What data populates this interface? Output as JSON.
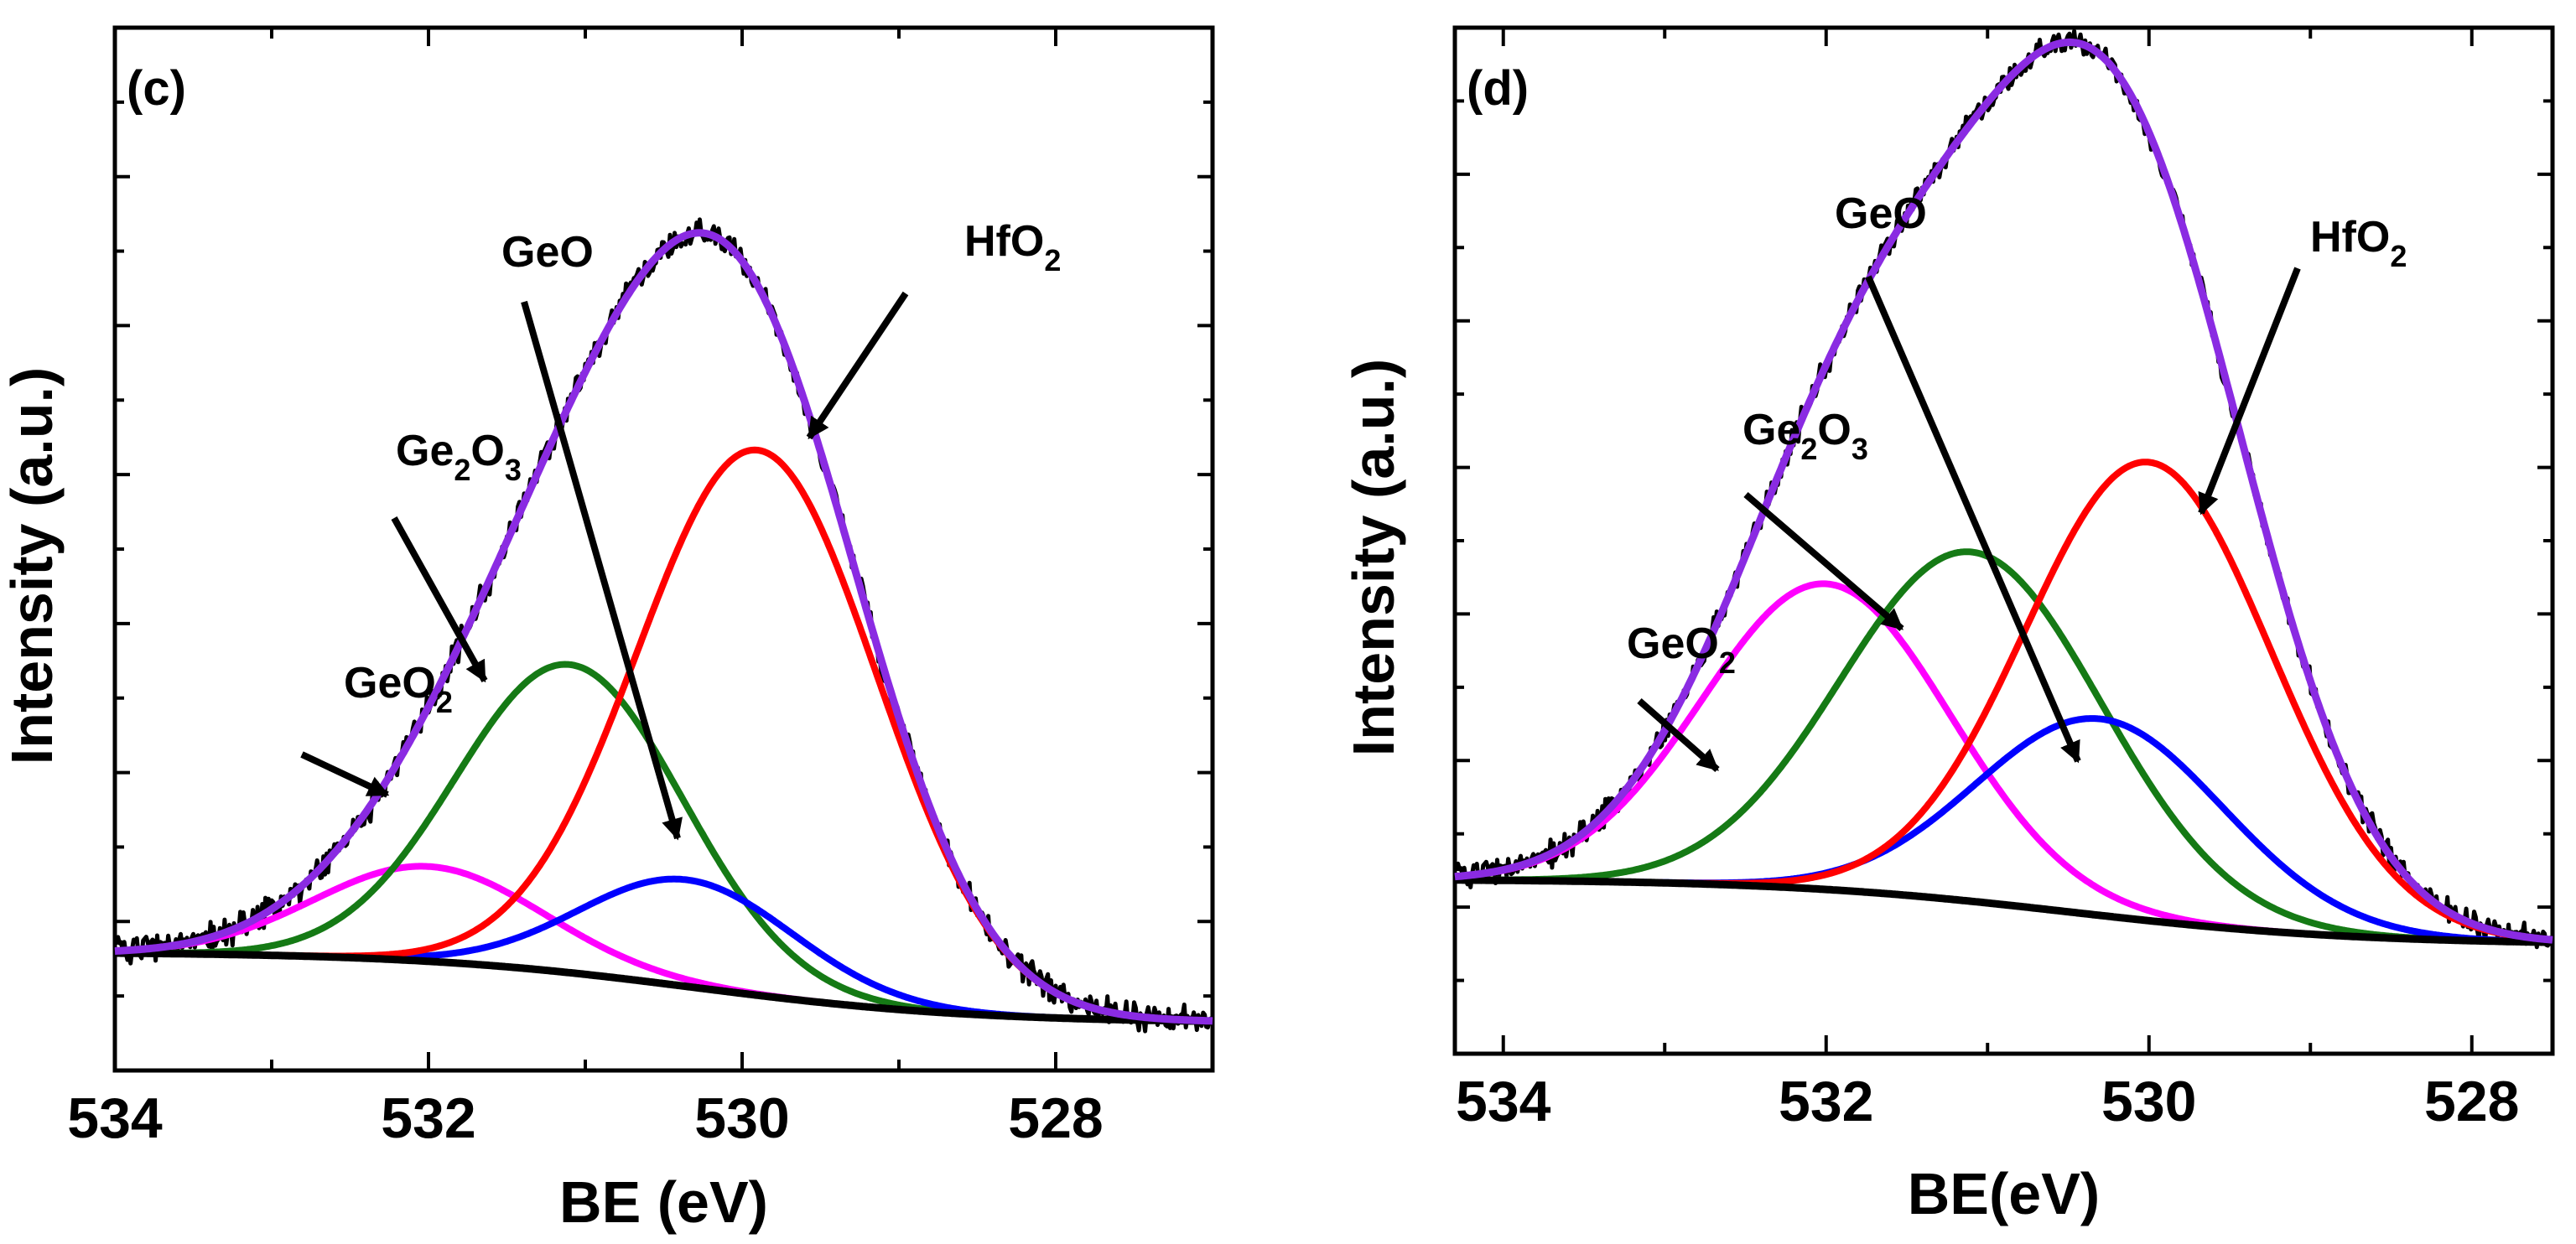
{
  "chart_data": [
    {
      "type": "line",
      "panel_label": "(c)",
      "xlabel": "BE (eV)",
      "ylabel": "Intensity (a.u.)",
      "xlim": [
        534,
        527
      ],
      "ylim": [
        -0.2,
        4.2
      ],
      "y_ticks_labeled": false,
      "x_ticks": [
        534,
        532,
        530,
        528
      ],
      "x_tick_labels": [
        "534",
        "532",
        "530",
        "528"
      ],
      "background": {
        "name": "Background",
        "color": "#000000",
        "high": 0.3,
        "low": 0,
        "center": 530.3,
        "width": 0.9
      },
      "series": [
        {
          "name": "GeO2",
          "color": "#ff00ff",
          "center": 532.0,
          "height": 0.4,
          "fwhm": 1.7
        },
        {
          "name": "Ge2O3",
          "color": "#157a15",
          "center": 531.1,
          "height": 1.3,
          "fwhm": 1.7
        },
        {
          "name": "GeO",
          "color": "#0000ff",
          "center": 530.35,
          "height": 0.45,
          "fwhm": 1.6
        },
        {
          "name": "HfO2",
          "color": "#ff0000",
          "center": 529.9,
          "height": 2.3,
          "fwhm": 1.8
        }
      ],
      "envelope": {
        "name": "Fit envelope",
        "color": "#8a2be2"
      },
      "raw": {
        "name": "Raw data",
        "color": "#000000"
      },
      "annotations": [
        {
          "base": "GeO",
          "sub": "2",
          "tail": "",
          "target": "GeO2"
        },
        {
          "base": "Ge",
          "sub": "2",
          "tail": "O",
          "sub2": "3",
          "target": "Ge2O3"
        },
        {
          "base": "GeO",
          "sub": "",
          "tail": "",
          "target": "GeO"
        },
        {
          "base": "HfO",
          "sub": "2",
          "tail": "",
          "target": "HfO2"
        }
      ]
    },
    {
      "type": "line",
      "panel_label": "(d)",
      "xlabel": "BE(eV)",
      "ylabel": "Intensity (a.u.)",
      "xlim": [
        534.3,
        527.5
      ],
      "ylim": [
        -0.5,
        4.2
      ],
      "y_ticks_labeled": false,
      "x_ticks": [
        534,
        532,
        530,
        528
      ],
      "x_tick_labels": [
        "534",
        "532",
        "530",
        "528"
      ],
      "background": {
        "name": "Background",
        "color": "#000000",
        "high": 0.3,
        "low": 0,
        "center": 530.5,
        "width": 0.9
      },
      "series": [
        {
          "name": "GeO2",
          "color": "#ff00ff",
          "center": 532.0,
          "height": 1.4,
          "fwhm": 1.8
        },
        {
          "name": "Ge2O3",
          "color": "#157a15",
          "center": 531.1,
          "height": 1.6,
          "fwhm": 1.9
        },
        {
          "name": "GeO",
          "color": "#0000ff",
          "center": 530.3,
          "height": 0.9,
          "fwhm": 1.8
        },
        {
          "name": "HfO2",
          "color": "#ff0000",
          "center": 530.0,
          "height": 2.1,
          "fwhm": 1.8
        }
      ],
      "envelope": {
        "name": "Fit envelope",
        "color": "#8a2be2"
      },
      "raw": {
        "name": "Raw data",
        "color": "#000000"
      },
      "annotations": [
        {
          "base": "GeO",
          "sub": "2",
          "tail": "",
          "target": "GeO2"
        },
        {
          "base": "Ge",
          "sub": "2",
          "tail": "O",
          "sub2": "3",
          "target": "Ge2O3"
        },
        {
          "base": "GeO",
          "sub": "",
          "tail": "",
          "target": "GeO"
        },
        {
          "base": "HfO",
          "sub": "2",
          "tail": "",
          "target": "HfO2"
        }
      ]
    }
  ]
}
